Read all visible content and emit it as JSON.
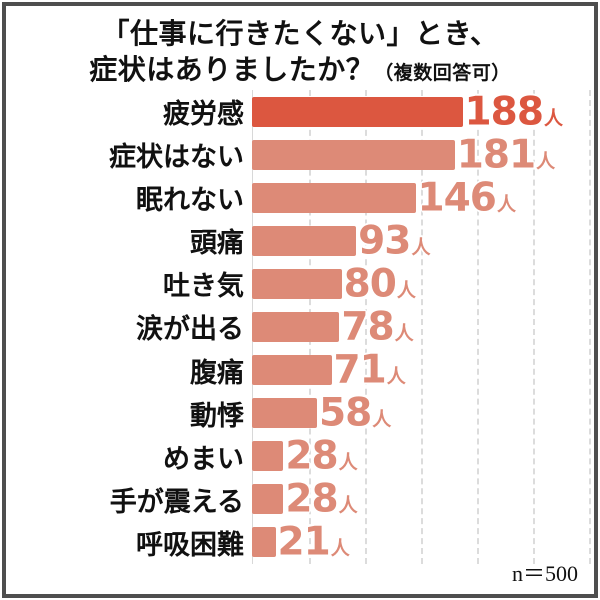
{
  "title": {
    "line1": "「仕事に行きたくない」とき、",
    "line2": "症状はありましたか？",
    "note": "（複数回答可）"
  },
  "footer": {
    "sample_size": "n＝500"
  },
  "colors": {
    "highlight_bar": "#dc5740",
    "bar": "#dd8a77",
    "gridline": "#dcdcdc",
    "text": "#111111",
    "border": "#4e4e4e"
  },
  "chart_data": {
    "type": "bar",
    "orientation": "horizontal",
    "title": "「仕事に行きたくない」とき、症状はありましたか？（複数回答可）",
    "categories": [
      "疲労感",
      "症状はない",
      "眠れない",
      "頭痛",
      "吐き気",
      "涙が出る",
      "腹痛",
      "動悸",
      "めまい",
      "手が震える",
      "呼吸困難"
    ],
    "values": [
      188,
      181,
      146,
      93,
      80,
      78,
      71,
      58,
      28,
      28,
      21
    ],
    "unit": "人",
    "value_labels": [
      "188人",
      "181人",
      "146人",
      "93人",
      "80人",
      "78人",
      "71人",
      "58人",
      "28人",
      "28人",
      "21人"
    ],
    "highlight_index": 0,
    "xlim": [
      0,
      300
    ],
    "gridlines": [
      50,
      100,
      150,
      200,
      250,
      300
    ],
    "grid_style": "dashed",
    "legend": false,
    "sample_size_label": "n＝500"
  }
}
